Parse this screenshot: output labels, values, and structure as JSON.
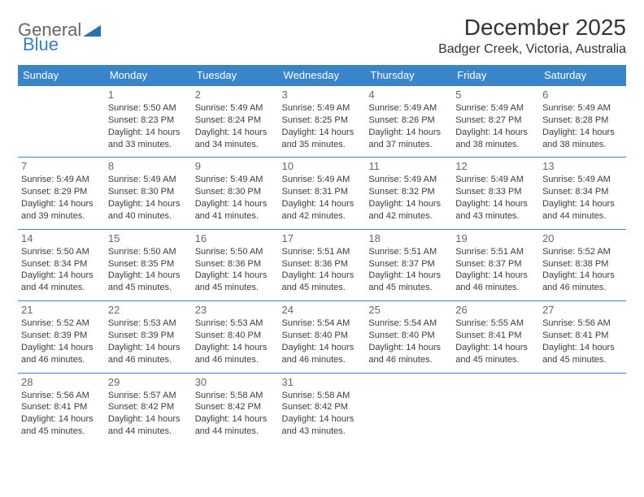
{
  "brand": {
    "general": "General",
    "blue": "Blue"
  },
  "title": "December 2025",
  "location": "Badger Creek, Victoria, Australia",
  "colors": {
    "header_bg": "#3a85c9",
    "header_text": "#ffffff",
    "border": "#3a85c9",
    "daynum": "#676767",
    "body_text": "#3c3c3c",
    "brand_gray": "#666666",
    "brand_blue": "#3a7ebf",
    "background": "#ffffff"
  },
  "typography": {
    "title_fontsize": 28,
    "location_fontsize": 16,
    "dayheader_fontsize": 13,
    "daynum_fontsize": 13,
    "body_fontsize": 11
  },
  "days_of_week": [
    "Sunday",
    "Monday",
    "Tuesday",
    "Wednesday",
    "Thursday",
    "Friday",
    "Saturday"
  ],
  "weeks": [
    [
      null,
      {
        "n": "1",
        "sr": "Sunrise: 5:50 AM",
        "ss": "Sunset: 8:23 PM",
        "dl1": "Daylight: 14 hours",
        "dl2": "and 33 minutes."
      },
      {
        "n": "2",
        "sr": "Sunrise: 5:49 AM",
        "ss": "Sunset: 8:24 PM",
        "dl1": "Daylight: 14 hours",
        "dl2": "and 34 minutes."
      },
      {
        "n": "3",
        "sr": "Sunrise: 5:49 AM",
        "ss": "Sunset: 8:25 PM",
        "dl1": "Daylight: 14 hours",
        "dl2": "and 35 minutes."
      },
      {
        "n": "4",
        "sr": "Sunrise: 5:49 AM",
        "ss": "Sunset: 8:26 PM",
        "dl1": "Daylight: 14 hours",
        "dl2": "and 37 minutes."
      },
      {
        "n": "5",
        "sr": "Sunrise: 5:49 AM",
        "ss": "Sunset: 8:27 PM",
        "dl1": "Daylight: 14 hours",
        "dl2": "and 38 minutes."
      },
      {
        "n": "6",
        "sr": "Sunrise: 5:49 AM",
        "ss": "Sunset: 8:28 PM",
        "dl1": "Daylight: 14 hours",
        "dl2": "and 38 minutes."
      }
    ],
    [
      {
        "n": "7",
        "sr": "Sunrise: 5:49 AM",
        "ss": "Sunset: 8:29 PM",
        "dl1": "Daylight: 14 hours",
        "dl2": "and 39 minutes."
      },
      {
        "n": "8",
        "sr": "Sunrise: 5:49 AM",
        "ss": "Sunset: 8:30 PM",
        "dl1": "Daylight: 14 hours",
        "dl2": "and 40 minutes."
      },
      {
        "n": "9",
        "sr": "Sunrise: 5:49 AM",
        "ss": "Sunset: 8:30 PM",
        "dl1": "Daylight: 14 hours",
        "dl2": "and 41 minutes."
      },
      {
        "n": "10",
        "sr": "Sunrise: 5:49 AM",
        "ss": "Sunset: 8:31 PM",
        "dl1": "Daylight: 14 hours",
        "dl2": "and 42 minutes."
      },
      {
        "n": "11",
        "sr": "Sunrise: 5:49 AM",
        "ss": "Sunset: 8:32 PM",
        "dl1": "Daylight: 14 hours",
        "dl2": "and 42 minutes."
      },
      {
        "n": "12",
        "sr": "Sunrise: 5:49 AM",
        "ss": "Sunset: 8:33 PM",
        "dl1": "Daylight: 14 hours",
        "dl2": "and 43 minutes."
      },
      {
        "n": "13",
        "sr": "Sunrise: 5:49 AM",
        "ss": "Sunset: 8:34 PM",
        "dl1": "Daylight: 14 hours",
        "dl2": "and 44 minutes."
      }
    ],
    [
      {
        "n": "14",
        "sr": "Sunrise: 5:50 AM",
        "ss": "Sunset: 8:34 PM",
        "dl1": "Daylight: 14 hours",
        "dl2": "and 44 minutes."
      },
      {
        "n": "15",
        "sr": "Sunrise: 5:50 AM",
        "ss": "Sunset: 8:35 PM",
        "dl1": "Daylight: 14 hours",
        "dl2": "and 45 minutes."
      },
      {
        "n": "16",
        "sr": "Sunrise: 5:50 AM",
        "ss": "Sunset: 8:36 PM",
        "dl1": "Daylight: 14 hours",
        "dl2": "and 45 minutes."
      },
      {
        "n": "17",
        "sr": "Sunrise: 5:51 AM",
        "ss": "Sunset: 8:36 PM",
        "dl1": "Daylight: 14 hours",
        "dl2": "and 45 minutes."
      },
      {
        "n": "18",
        "sr": "Sunrise: 5:51 AM",
        "ss": "Sunset: 8:37 PM",
        "dl1": "Daylight: 14 hours",
        "dl2": "and 45 minutes."
      },
      {
        "n": "19",
        "sr": "Sunrise: 5:51 AM",
        "ss": "Sunset: 8:37 PM",
        "dl1": "Daylight: 14 hours",
        "dl2": "and 46 minutes."
      },
      {
        "n": "20",
        "sr": "Sunrise: 5:52 AM",
        "ss": "Sunset: 8:38 PM",
        "dl1": "Daylight: 14 hours",
        "dl2": "and 46 minutes."
      }
    ],
    [
      {
        "n": "21",
        "sr": "Sunrise: 5:52 AM",
        "ss": "Sunset: 8:39 PM",
        "dl1": "Daylight: 14 hours",
        "dl2": "and 46 minutes."
      },
      {
        "n": "22",
        "sr": "Sunrise: 5:53 AM",
        "ss": "Sunset: 8:39 PM",
        "dl1": "Daylight: 14 hours",
        "dl2": "and 46 minutes."
      },
      {
        "n": "23",
        "sr": "Sunrise: 5:53 AM",
        "ss": "Sunset: 8:40 PM",
        "dl1": "Daylight: 14 hours",
        "dl2": "and 46 minutes."
      },
      {
        "n": "24",
        "sr": "Sunrise: 5:54 AM",
        "ss": "Sunset: 8:40 PM",
        "dl1": "Daylight: 14 hours",
        "dl2": "and 46 minutes."
      },
      {
        "n": "25",
        "sr": "Sunrise: 5:54 AM",
        "ss": "Sunset: 8:40 PM",
        "dl1": "Daylight: 14 hours",
        "dl2": "and 46 minutes."
      },
      {
        "n": "26",
        "sr": "Sunrise: 5:55 AM",
        "ss": "Sunset: 8:41 PM",
        "dl1": "Daylight: 14 hours",
        "dl2": "and 45 minutes."
      },
      {
        "n": "27",
        "sr": "Sunrise: 5:56 AM",
        "ss": "Sunset: 8:41 PM",
        "dl1": "Daylight: 14 hours",
        "dl2": "and 45 minutes."
      }
    ],
    [
      {
        "n": "28",
        "sr": "Sunrise: 5:56 AM",
        "ss": "Sunset: 8:41 PM",
        "dl1": "Daylight: 14 hours",
        "dl2": "and 45 minutes."
      },
      {
        "n": "29",
        "sr": "Sunrise: 5:57 AM",
        "ss": "Sunset: 8:42 PM",
        "dl1": "Daylight: 14 hours",
        "dl2": "and 44 minutes."
      },
      {
        "n": "30",
        "sr": "Sunrise: 5:58 AM",
        "ss": "Sunset: 8:42 PM",
        "dl1": "Daylight: 14 hours",
        "dl2": "and 44 minutes."
      },
      {
        "n": "31",
        "sr": "Sunrise: 5:58 AM",
        "ss": "Sunset: 8:42 PM",
        "dl1": "Daylight: 14 hours",
        "dl2": "and 43 minutes."
      },
      null,
      null,
      null
    ]
  ]
}
